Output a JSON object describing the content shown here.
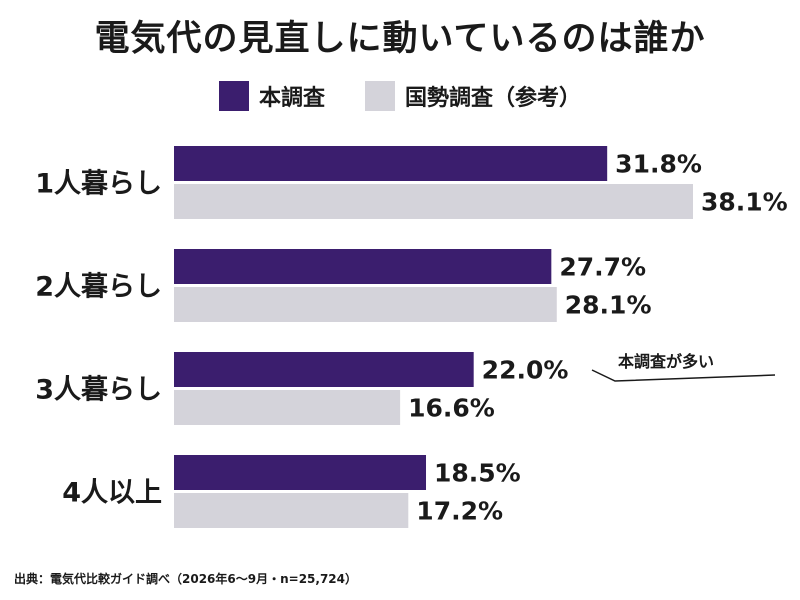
{
  "title": "電気代の見直しに動いているのは誰か",
  "legend": [
    {
      "label": "本調査",
      "color": "#3b1e6e"
    },
    {
      "label": "国勢調査（参考）",
      "color": "#d4d3da"
    }
  ],
  "annotation": "本調査が多い",
  "source": "出典：電気代比較ガイド調べ（2026年6〜9月・n=25,724）",
  "chart_data": {
    "type": "bar",
    "orientation": "horizontal",
    "categories": [
      "1人暮らし",
      "2人暮らし",
      "3人暮らし",
      "4人以上"
    ],
    "series": [
      {
        "name": "本調査",
        "values": [
          31.8,
          27.7,
          22.0,
          18.5
        ],
        "labels": [
          "31.8%",
          "27.7%",
          "22.0%",
          "18.5%"
        ],
        "color": "#3b1e6e"
      },
      {
        "name": "国勢調査（参考）",
        "values": [
          38.1,
          28.1,
          16.6,
          17.2
        ],
        "labels": [
          "38.1%",
          "28.1%",
          "16.6%",
          "17.2%"
        ],
        "color": "#d4d3da"
      }
    ],
    "unit": "%",
    "xlim": [
      0,
      38.1
    ],
    "grid": false,
    "legend_position": "top-center"
  }
}
